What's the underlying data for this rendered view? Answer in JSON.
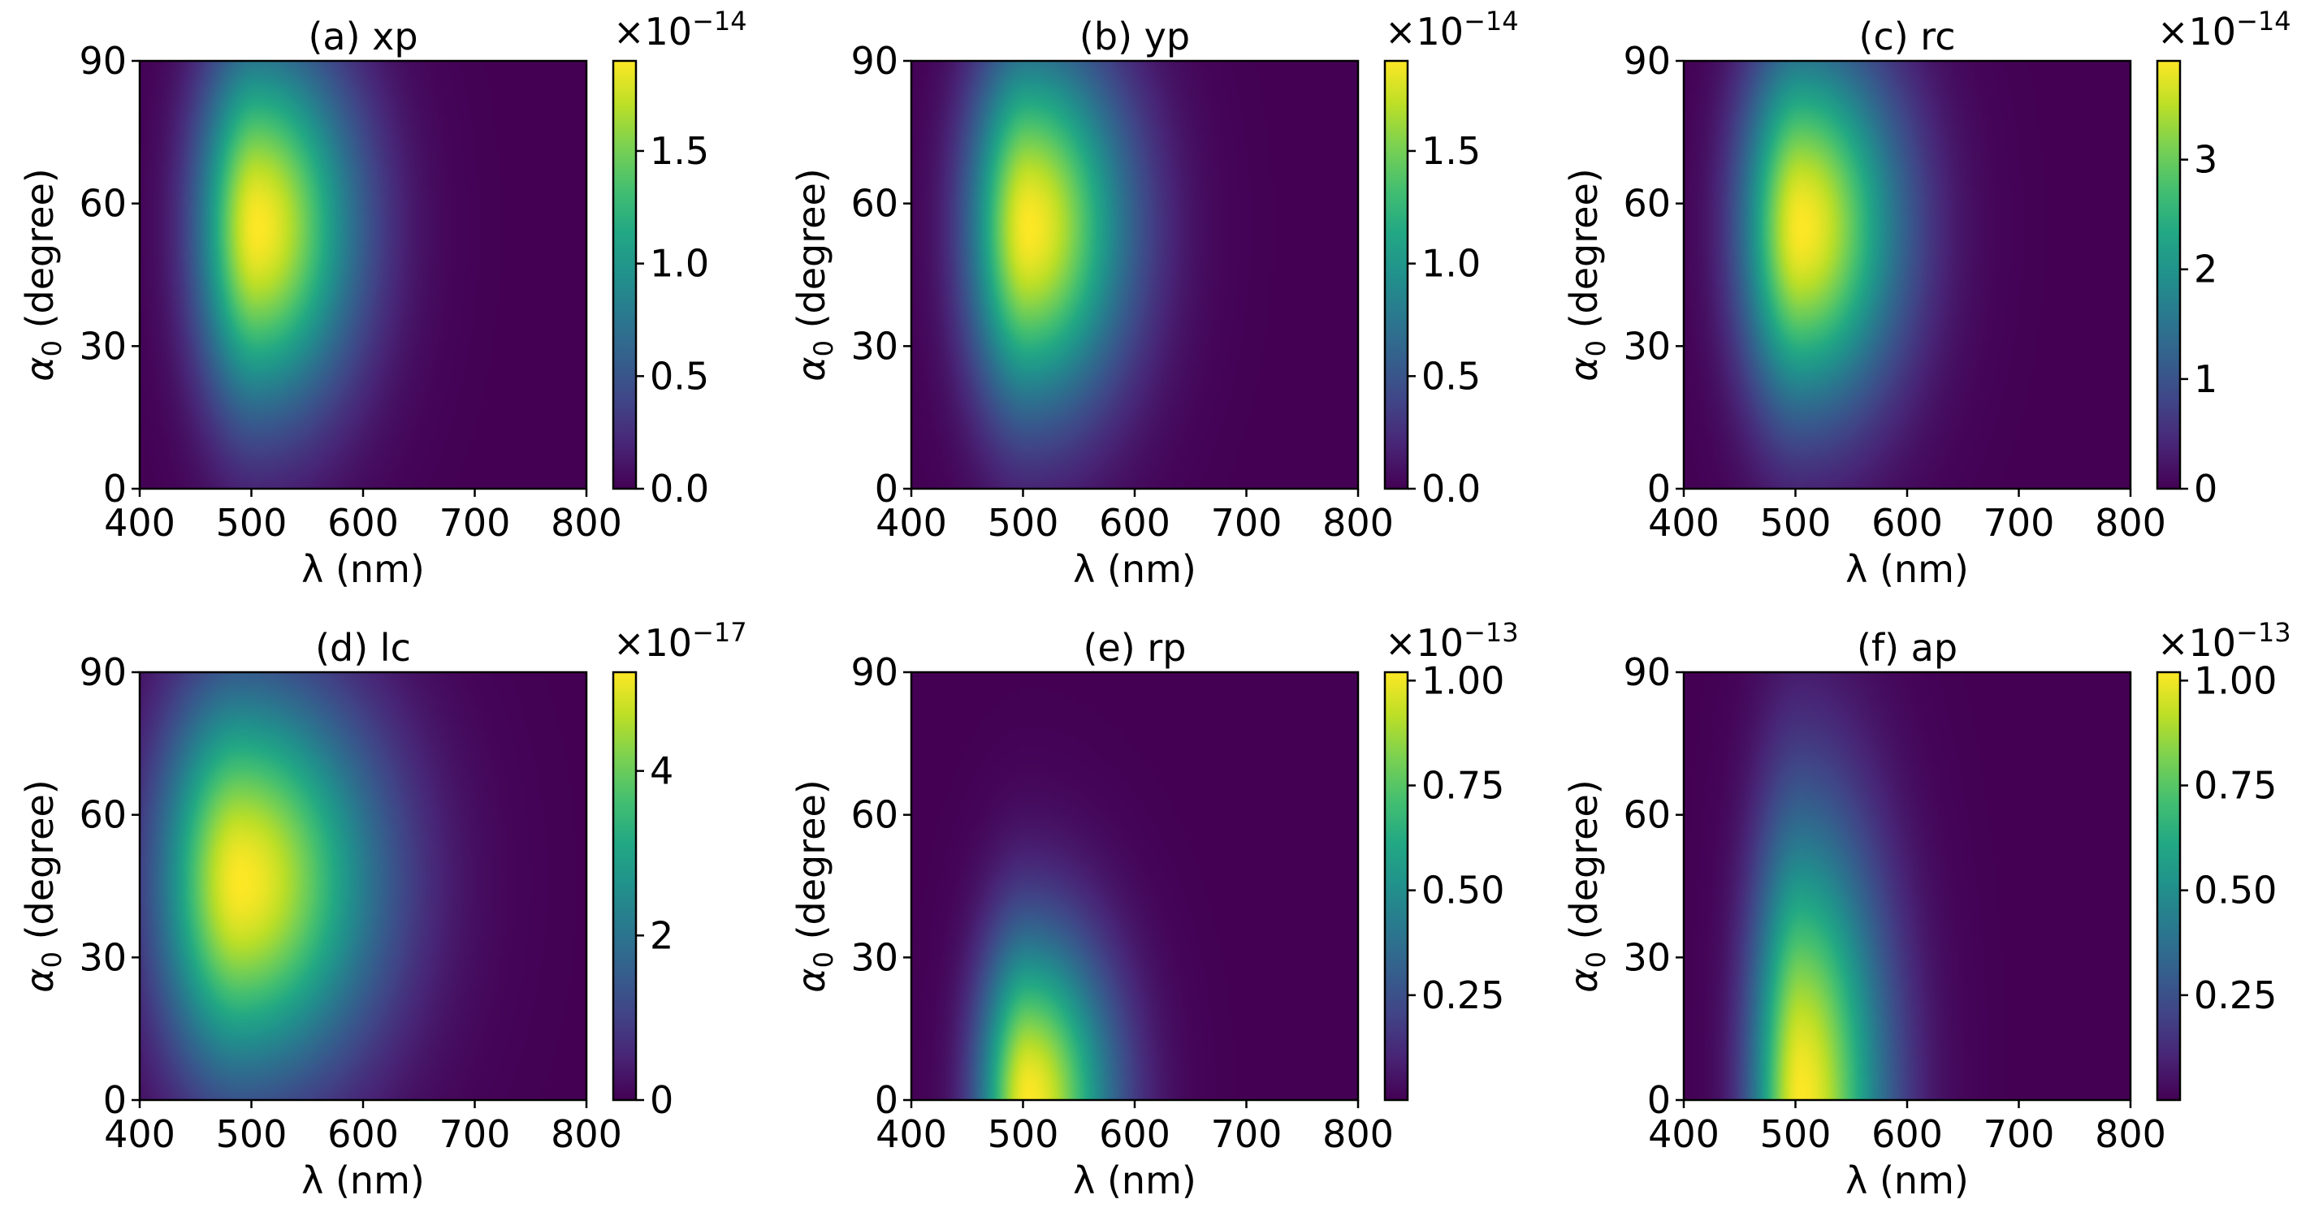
{
  "chart_data": [
    {
      "type": "heatmap",
      "panel": "a",
      "title": "(a) xp",
      "xlabel": "λ (nm)",
      "ylabel_symbol": "α",
      "ylabel_sub": "0",
      "ylabel_rest": " (degree)",
      "xlim": [
        400,
        800
      ],
      "ylim": [
        0,
        90
      ],
      "x_ticks": [
        "400",
        "500",
        "600",
        "700",
        "800"
      ],
      "y_ticks": [
        "0",
        "30",
        "60",
        "90"
      ],
      "colorbar": {
        "range": [
          0,
          1.9
        ],
        "ticks": [
          0,
          0.5,
          1.0,
          1.5
        ],
        "tick_labels": [
          "0.0",
          "0.5",
          "1.0",
          "1.5"
        ],
        "offset_base": "×10",
        "offset_exp": "−14"
      },
      "peak": {
        "lambda_nm": 505,
        "alpha_deg": 55,
        "value": 1.9,
        "sigma_lambda_nm": 45,
        "sigma_alpha_deg": 26
      }
    },
    {
      "type": "heatmap",
      "panel": "b",
      "title": "(b) yp",
      "xlabel": "λ (nm)",
      "ylabel_symbol": "α",
      "ylabel_sub": "0",
      "ylabel_rest": " (degree)",
      "xlim": [
        400,
        800
      ],
      "ylim": [
        0,
        90
      ],
      "x_ticks": [
        "400",
        "500",
        "600",
        "700",
        "800"
      ],
      "y_ticks": [
        "0",
        "30",
        "60",
        "90"
      ],
      "colorbar": {
        "range": [
          0,
          1.9
        ],
        "ticks": [
          0,
          0.5,
          1.0,
          1.5
        ],
        "tick_labels": [
          "0.0",
          "0.5",
          "1.0",
          "1.5"
        ],
        "offset_base": "×10",
        "offset_exp": "−14"
      },
      "peak": {
        "lambda_nm": 505,
        "alpha_deg": 55,
        "value": 1.9,
        "sigma_lambda_nm": 45,
        "sigma_alpha_deg": 26
      }
    },
    {
      "type": "heatmap",
      "panel": "c",
      "title": "(c) rc",
      "xlabel": "λ (nm)",
      "ylabel_symbol": "α",
      "ylabel_sub": "0",
      "ylabel_rest": " (degree)",
      "xlim": [
        400,
        800
      ],
      "ylim": [
        0,
        90
      ],
      "x_ticks": [
        "400",
        "500",
        "600",
        "700",
        "800"
      ],
      "y_ticks": [
        "0",
        "30",
        "60",
        "90"
      ],
      "colorbar": {
        "range": [
          0,
          3.9
        ],
        "ticks": [
          0,
          1,
          2,
          3
        ],
        "tick_labels": [
          "0",
          "1",
          "2",
          "3"
        ],
        "offset_base": "×10",
        "offset_exp": "−14"
      },
      "peak": {
        "lambda_nm": 505,
        "alpha_deg": 55,
        "value": 3.9,
        "sigma_lambda_nm": 45,
        "sigma_alpha_deg": 26
      }
    },
    {
      "type": "heatmap",
      "panel": "d",
      "title": "(d) lc",
      "xlabel": "λ (nm)",
      "ylabel_symbol": "α",
      "ylabel_sub": "0",
      "ylabel_rest": " (degree)",
      "xlim": [
        400,
        800
      ],
      "ylim": [
        0,
        90
      ],
      "x_ticks": [
        "400",
        "500",
        "600",
        "700",
        "800"
      ],
      "y_ticks": [
        "0",
        "30",
        "60",
        "90"
      ],
      "colorbar": {
        "range": [
          0,
          5.2
        ],
        "ticks": [
          0,
          2,
          4
        ],
        "tick_labels": [
          "0",
          "2",
          "4"
        ],
        "offset_base": "×10",
        "offset_exp": "−17"
      },
      "peak": {
        "lambda_nm": 490,
        "alpha_deg": 46,
        "value": 5.2,
        "sigma_lambda_nm": 62,
        "sigma_alpha_deg": 28
      }
    },
    {
      "type": "heatmap",
      "panel": "e",
      "title": "(e) rp",
      "xlabel": "λ (nm)",
      "ylabel_symbol": "α",
      "ylabel_sub": "0",
      "ylabel_rest": " (degree)",
      "xlim": [
        400,
        800
      ],
      "ylim": [
        0,
        90
      ],
      "x_ticks": [
        "400",
        "500",
        "600",
        "700",
        "800"
      ],
      "y_ticks": [
        "0",
        "30",
        "60",
        "90"
      ],
      "colorbar": {
        "range": [
          0,
          1.02
        ],
        "ticks": [
          0.25,
          0.5,
          0.75,
          1.0
        ],
        "tick_labels": [
          "0.25",
          "0.50",
          "0.75",
          "1.00"
        ],
        "offset_base": "×10",
        "offset_exp": "−13"
      },
      "peak": {
        "lambda_nm": 505,
        "alpha_deg": 0,
        "value": 1.02,
        "sigma_lambda_nm": 38,
        "sigma_alpha_deg": 24
      }
    },
    {
      "type": "heatmap",
      "panel": "f",
      "title": "(f) ap",
      "xlabel": "λ (nm)",
      "ylabel_symbol": "α",
      "ylabel_sub": "0",
      "ylabel_rest": " (degree)",
      "xlim": [
        400,
        800
      ],
      "ylim": [
        0,
        90
      ],
      "x_ticks": [
        "400",
        "500",
        "600",
        "700",
        "800"
      ],
      "y_ticks": [
        "0",
        "30",
        "60",
        "90"
      ],
      "colorbar": {
        "range": [
          0,
          1.02
        ],
        "ticks": [
          0.25,
          0.5,
          0.75,
          1.0
        ],
        "tick_labels": [
          "0.25",
          "0.50",
          "0.75",
          "1.00"
        ],
        "offset_base": "×10",
        "offset_exp": "−13"
      },
      "peak": {
        "lambda_nm": 505,
        "alpha_deg": 0,
        "value": 1.02,
        "sigma_lambda_nm": 38,
        "sigma_alpha_deg": 40
      }
    }
  ]
}
